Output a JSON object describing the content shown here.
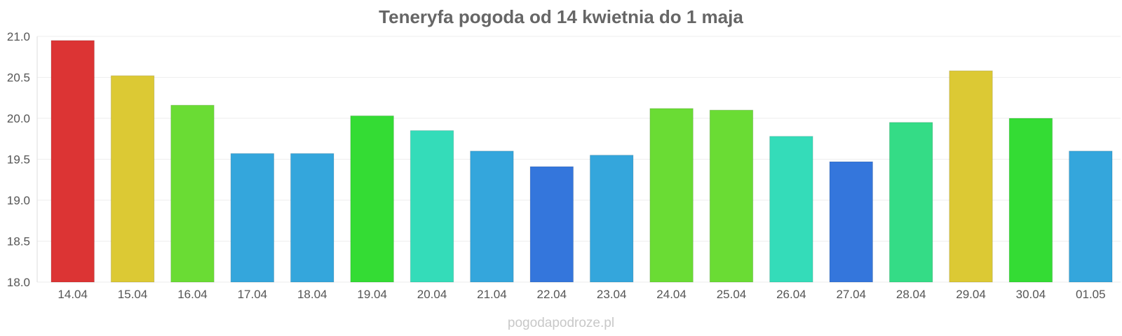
{
  "chart_data": {
    "type": "bar",
    "title": "Teneryfa pogoda od 14 kwietnia do 1 maja",
    "categories": [
      "14.04",
      "15.04",
      "16.04",
      "17.04",
      "18.04",
      "19.04",
      "20.04",
      "21.04",
      "22.04",
      "23.04",
      "24.04",
      "25.04",
      "26.04",
      "27.04",
      "28.04",
      "29.04",
      "30.04",
      "01.05"
    ],
    "values": [
      20.95,
      20.52,
      20.16,
      19.57,
      19.57,
      20.03,
      19.85,
      19.6,
      19.41,
      19.55,
      20.12,
      20.1,
      19.78,
      19.47,
      19.95,
      20.58,
      20.0,
      19.6
    ],
    "colors": [
      "#dc3434",
      "#dcc934",
      "#6adc34",
      "#34a6dc",
      "#34a6dc",
      "#34dc34",
      "#34dcb9",
      "#34a6dc",
      "#3476dc",
      "#34a6dc",
      "#6adc34",
      "#6adc34",
      "#34dcb9",
      "#3476dc",
      "#34dc86",
      "#dcc934",
      "#34dc34",
      "#34a6dc"
    ],
    "ylim": [
      18.0,
      21.0
    ],
    "yticks": [
      "18.0",
      "18.5",
      "19.0",
      "19.5",
      "20.0",
      "20.5",
      "21.0"
    ],
    "grid": true,
    "xlabel": "",
    "ylabel": ""
  },
  "credit": "pogodapodroze.pl"
}
